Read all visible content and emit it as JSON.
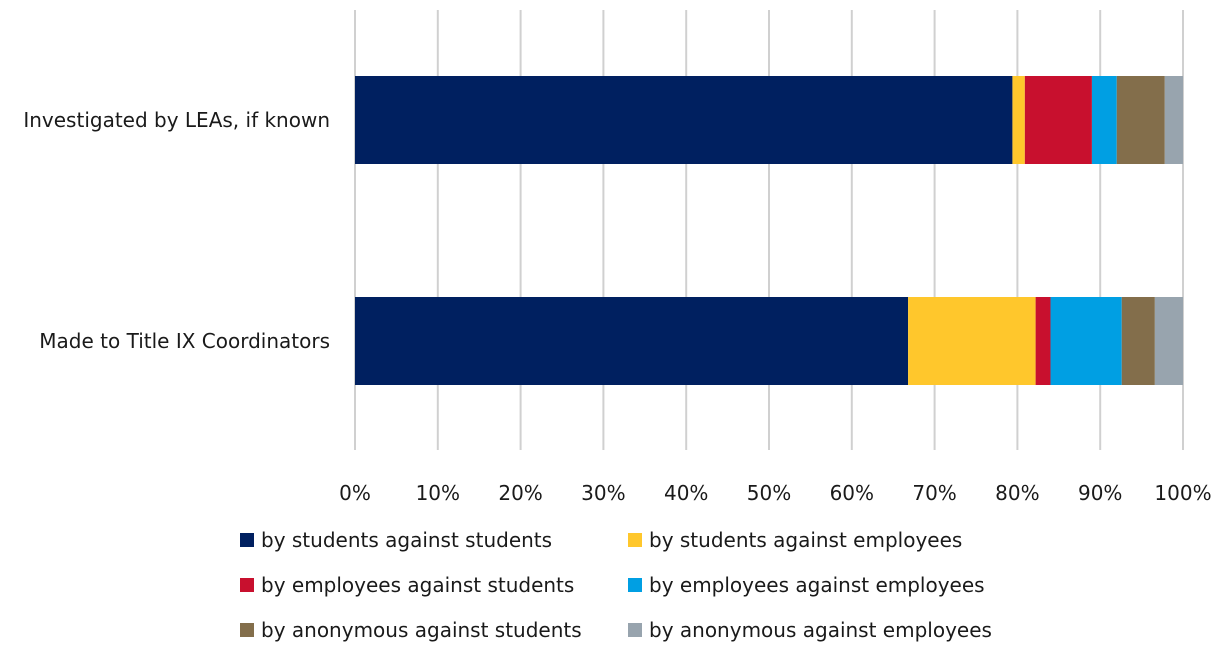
{
  "chart_data": {
    "type": "bar",
    "orientation": "horizontal",
    "stacked": true,
    "categories": [
      "Investigated by LEAs, if known",
      "Made to Title IX Coordinators"
    ],
    "series": [
      {
        "name": "by students against students",
        "color": "#002060",
        "values": [
          79.4,
          66.8
        ]
      },
      {
        "name": "by students against employees",
        "color": "#FFC72C",
        "values": [
          1.5,
          15.4
        ]
      },
      {
        "name": "by employees against students",
        "color": "#C8102E",
        "values": [
          8.1,
          1.8
        ]
      },
      {
        "name": "by employees against employees",
        "color": "#009FE3",
        "values": [
          3.0,
          8.6
        ]
      },
      {
        "name": "by anonymous against students",
        "color": "#836E4B",
        "values": [
          5.8,
          4.0
        ]
      },
      {
        "name": "by anonymous against employees",
        "color": "#98A4AE",
        "values": [
          2.2,
          3.4
        ]
      }
    ],
    "xlim": [
      0,
      100
    ],
    "xticks": [
      "0%",
      "10%",
      "20%",
      "30%",
      "40%",
      "50%",
      "60%",
      "70%",
      "80%",
      "90%",
      "100%"
    ],
    "grid": "vertical",
    "legend_position": "bottom"
  }
}
